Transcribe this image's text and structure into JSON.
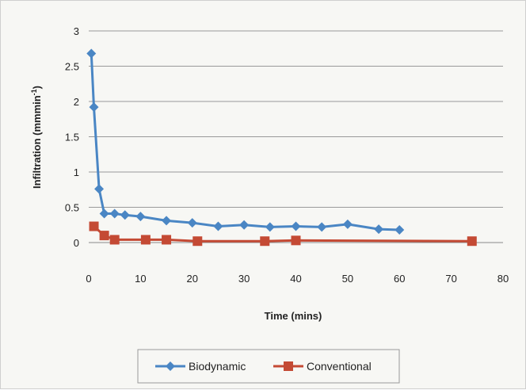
{
  "chart_data": {
    "type": "line",
    "title": "",
    "xlabel": "Time (mins)",
    "ylabel_main": "Infiltration (mmmin",
    "ylabel_sup": "-1",
    "ylabel_close": ")",
    "xlim": [
      0,
      80
    ],
    "ylim": [
      0,
      3
    ],
    "xticks": [
      0,
      10,
      20,
      30,
      40,
      50,
      60,
      70,
      80
    ],
    "yticks": [
      0,
      0.5,
      1,
      1.5,
      2,
      2.5,
      3
    ],
    "grid": "horizontal",
    "legend_position": "bottom",
    "series": [
      {
        "name": "Biodynamic",
        "color": "#4a86c4",
        "marker": "diamond",
        "x": [
          0.5,
          1,
          2,
          3,
          5,
          7,
          10,
          15,
          20,
          25,
          30,
          35,
          40,
          45,
          50,
          56,
          60
        ],
        "y": [
          2.68,
          1.92,
          0.76,
          0.41,
          0.41,
          0.39,
          0.37,
          0.31,
          0.28,
          0.23,
          0.25,
          0.22,
          0.23,
          0.22,
          0.26,
          0.19,
          0.18
        ]
      },
      {
        "name": "Conventional",
        "color": "#c44a34",
        "marker": "square",
        "x": [
          1,
          3,
          5,
          11,
          15,
          21,
          34,
          40,
          74
        ],
        "y": [
          0.23,
          0.1,
          0.04,
          0.04,
          0.04,
          0.02,
          0.02,
          0.03,
          0.02
        ]
      }
    ]
  }
}
